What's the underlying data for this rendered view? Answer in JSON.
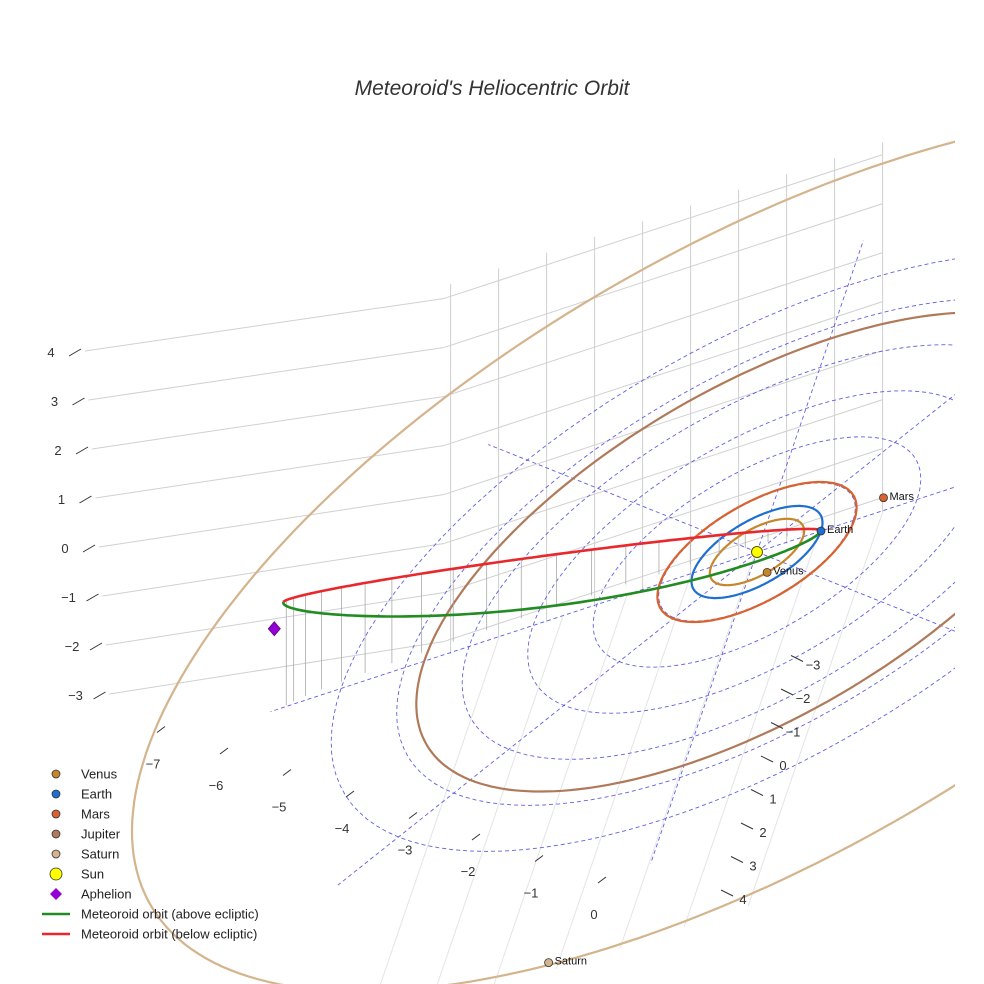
{
  "chart_data": {
    "type": "scatter3d",
    "title": "Meteoroid's Heliocentric Orbit",
    "axes": {
      "x": {
        "range": [
          -7.5,
          4.5
        ],
        "ticks": [
          -7,
          -6,
          -5,
          -4,
          -3,
          -2,
          -1,
          0
        ]
      },
      "y": {
        "range": [
          -4,
          4.5
        ],
        "ticks": [
          -3,
          -2,
          -1,
          0,
          1,
          2,
          3,
          4
        ]
      },
      "z": {
        "range": [
          -3.5,
          4.3
        ],
        "ticks": [
          -3,
          -2,
          -1,
          0,
          1,
          2,
          3,
          4
        ]
      },
      "grid": true
    },
    "colors": {
      "venus": "#c8862a",
      "earth": "#1f6fcf",
      "mars": "#d9622e",
      "jupiter": "#b07a5a",
      "saturn": "#d4b48c",
      "sun": "#ffff00",
      "aphelion": "#9400d3",
      "above": "#228b22",
      "below": "#e8282c",
      "ecliptic_grid": "#4444dd",
      "box_grid": "#d0d0d0"
    },
    "planets": [
      {
        "name": "Venus",
        "orbit_radius_au": 0.72,
        "position": [
          0.3,
          0.65,
          0
        ]
      },
      {
        "name": "Earth",
        "orbit_radius_au": 1.0,
        "position": [
          1.0,
          0.0,
          0
        ]
      },
      {
        "name": "Mars",
        "orbit_radius_au": 1.52,
        "position": [
          1.9,
          -0.35,
          0
        ]
      },
      {
        "name": "Jupiter",
        "orbit_radius_au": 5.2,
        "position": null
      },
      {
        "name": "Saturn",
        "orbit_radius_au": 9.54,
        "position": [
          -1.2,
          9.4,
          0
        ]
      }
    ],
    "sun": {
      "name": "Sun",
      "position": [
        0,
        0,
        0
      ]
    },
    "aphelion": {
      "name": "Aphelion",
      "position": [
        -7.4,
        0.65,
        2.15
      ]
    },
    "meteoroid_orbit": {
      "perihelion_au": 0.97,
      "aphelion_au": 7.5,
      "inclination_deg": 18,
      "above_label": "Meteoroid orbit (above ecliptic)",
      "below_label": "Meteoroid orbit (below ecliptic)"
    },
    "legend": [
      {
        "label": "Venus",
        "kind": "dot",
        "color": "#c8862a"
      },
      {
        "label": "Earth",
        "kind": "dot",
        "color": "#1f6fcf"
      },
      {
        "label": "Mars",
        "kind": "dot",
        "color": "#d9622e"
      },
      {
        "label": "Jupiter",
        "kind": "dot",
        "color": "#b07a5a"
      },
      {
        "label": "Saturn",
        "kind": "dot",
        "color": "#d4b48c"
      },
      {
        "label": "Sun",
        "kind": "sun",
        "color": "#ffff00"
      },
      {
        "label": "Aphelion",
        "kind": "diamond",
        "color": "#9400d3"
      },
      {
        "label": "Meteoroid orbit (above ecliptic)",
        "kind": "line",
        "color": "#228b22"
      },
      {
        "label": "Meteoroid orbit (below ecliptic)",
        "kind": "line",
        "color": "#e8282c"
      }
    ],
    "legend_placement": "bottom-left"
  }
}
